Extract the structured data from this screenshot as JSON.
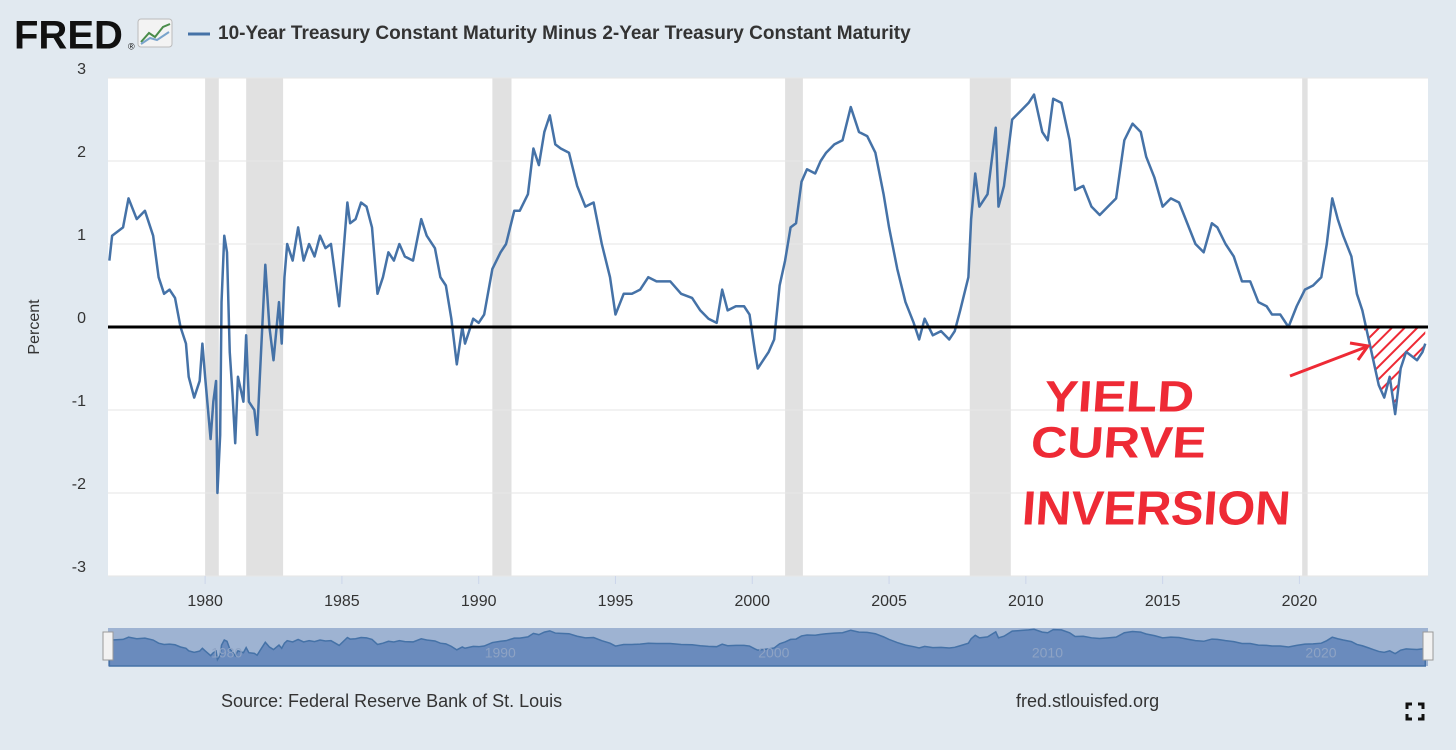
{
  "header": {
    "logo": "FRED",
    "logo_mark": "®"
  },
  "chart_data": {
    "type": "line",
    "y_label": "Percent",
    "series": [
      {
        "name": "10-Year Treasury Constant Maturity Minus 2-Year Treasury Constant Maturity",
        "color": "#4572a7",
        "values": [
          0.8,
          1.1,
          1.2,
          1.55,
          1.3,
          1.4,
          1.1,
          0.6,
          0.4,
          0.45,
          0.35,
          0.0,
          -0.2,
          -0.6,
          -0.85,
          -0.65,
          -0.2,
          -0.6,
          -1.35,
          -0.9,
          -0.65,
          -2.0,
          -1.3,
          0.3,
          1.1,
          0.9,
          -0.3,
          -0.8,
          -1.4,
          -0.6,
          -0.9,
          -0.1,
          -0.9,
          -1.0,
          -1.3,
          -0.6,
          0.75,
          0.0,
          -0.4,
          0.3,
          -0.2,
          0.6,
          1.0,
          0.8,
          1.2,
          0.8,
          1.0,
          0.85,
          1.1,
          0.95,
          1.0,
          0.5,
          0.25,
          1.5,
          1.25,
          1.3,
          1.5,
          1.45,
          1.2,
          0.4,
          0.6,
          0.9,
          0.8,
          1.0,
          0.85,
          0.8,
          1.3,
          1.1,
          0.95,
          0.6,
          0.5,
          0.1,
          -0.45,
          0.0,
          -0.2,
          0.1,
          0.05,
          0.15,
          0.7,
          0.9,
          1.0,
          1.4,
          1.4,
          1.6,
          2.15,
          1.95,
          2.35,
          2.55,
          2.2,
          2.15,
          2.1,
          1.7,
          1.45,
          1.5,
          1.0,
          0.6,
          0.15,
          0.4,
          0.4,
          0.45,
          0.6,
          0.55,
          0.55,
          0.55,
          0.4,
          0.35,
          0.2,
          0.1,
          0.05,
          0.45,
          0.2,
          0.25,
          0.25,
          0.15,
          -0.3,
          -0.5,
          -0.4,
          -0.3,
          -0.15,
          0.5,
          0.8,
          1.2,
          1.25,
          1.75,
          1.9,
          1.85,
          2.0,
          2.1,
          2.2,
          2.25,
          2.65,
          2.35,
          2.3,
          2.1,
          1.6,
          1.2,
          0.7,
          0.3,
          0.05,
          -0.15,
          0.1,
          -0.1,
          -0.05,
          -0.15,
          -0.05,
          0.2,
          0.6,
          1.3,
          1.85,
          1.45,
          1.6,
          2.4,
          1.45,
          1.7,
          2.5,
          2.6,
          2.7,
          2.8,
          2.35,
          2.25,
          2.75,
          2.7,
          2.25,
          1.65,
          1.7,
          1.45,
          1.35,
          1.45,
          1.55,
          2.25,
          2.45,
          2.35,
          2.05,
          1.8,
          1.45,
          1.55,
          1.5,
          1.25,
          1.0,
          0.9,
          1.25,
          1.2,
          1.0,
          0.85,
          0.55,
          0.55,
          0.3,
          0.25,
          0.15,
          0.15,
          0.0,
          0.25,
          0.45,
          0.5,
          0.6,
          1.0,
          1.55,
          1.3,
          1.1,
          0.85,
          0.4,
          0.2,
          -0.1,
          -0.4,
          -0.7,
          -0.85,
          -0.6,
          -1.05,
          -0.5,
          -0.3,
          -0.35,
          -0.4,
          -0.3,
          -0.2
        ]
      }
    ],
    "x": [
      1976.5,
      1976.6,
      1977.0,
      1977.2,
      1977.5,
      1977.8,
      1978.1,
      1978.3,
      1978.5,
      1978.7,
      1978.9,
      1979.1,
      1979.3,
      1979.4,
      1979.6,
      1979.8,
      1979.9,
      1980.0,
      1980.2,
      1980.3,
      1980.4,
      1980.45,
      1980.55,
      1980.6,
      1980.7,
      1980.8,
      1980.9,
      1981.0,
      1981.1,
      1981.2,
      1981.4,
      1981.5,
      1981.6,
      1981.8,
      1981.9,
      1982.0,
      1982.2,
      1982.35,
      1982.5,
      1982.7,
      1982.8,
      1982.9,
      1983.0,
      1983.2,
      1983.4,
      1983.6,
      1983.8,
      1984.0,
      1984.2,
      1984.4,
      1984.6,
      1984.8,
      1984.9,
      1985.2,
      1985.3,
      1985.5,
      1985.7,
      1985.9,
      1986.1,
      1986.3,
      1986.5,
      1986.7,
      1986.9,
      1987.1,
      1987.3,
      1987.6,
      1987.9,
      1988.1,
      1988.4,
      1988.6,
      1988.8,
      1989.0,
      1989.2,
      1989.4,
      1989.5,
      1989.8,
      1990.0,
      1990.2,
      1990.5,
      1990.8,
      1991.0,
      1991.3,
      1991.5,
      1991.8,
      1992.0,
      1992.2,
      1992.4,
      1992.6,
      1992.8,
      1993.0,
      1993.3,
      1993.6,
      1993.9,
      1994.2,
      1994.5,
      1994.8,
      1995.0,
      1995.3,
      1995.6,
      1995.9,
      1996.2,
      1996.5,
      1996.8,
      1997.0,
      1997.4,
      1997.8,
      1998.1,
      1998.4,
      1998.7,
      1998.9,
      1999.1,
      1999.4,
      1999.7,
      1999.9,
      2000.1,
      2000.2,
      2000.4,
      2000.6,
      2000.8,
      2001.0,
      2001.2,
      2001.4,
      2001.6,
      2001.8,
      2002.0,
      2002.3,
      2002.5,
      2002.7,
      2003.0,
      2003.3,
      2003.6,
      2003.9,
      2004.2,
      2004.5,
      2004.8,
      2005.0,
      2005.3,
      2005.6,
      2005.9,
      2006.1,
      2006.3,
      2006.6,
      2006.9,
      2007.2,
      2007.4,
      2007.6,
      2007.9,
      2008.0,
      2008.15,
      2008.3,
      2008.6,
      2008.9,
      2009.0,
      2009.2,
      2009.5,
      2009.8,
      2010.1,
      2010.3,
      2010.6,
      2010.8,
      2011.0,
      2011.3,
      2011.6,
      2011.8,
      2012.1,
      2012.4,
      2012.7,
      2013.0,
      2013.3,
      2013.6,
      2013.9,
      2014.2,
      2014.4,
      2014.7,
      2015.0,
      2015.3,
      2015.6,
      2015.9,
      2016.2,
      2016.5,
      2016.8,
      2017.0,
      2017.3,
      2017.6,
      2017.9,
      2018.2,
      2018.5,
      2018.8,
      2019.0,
      2019.3,
      2019.6,
      2019.9,
      2020.2,
      2020.5,
      2020.8,
      2021.0,
      2021.2,
      2021.4,
      2021.6,
      2021.9,
      2022.1,
      2022.3,
      2022.5,
      2022.7,
      2022.9,
      2023.1,
      2023.3,
      2023.5,
      2023.7,
      2023.9,
      2024.1,
      2024.3,
      2024.5,
      2024.6
    ],
    "xlim": [
      1976.45,
      2024.7
    ],
    "ylim": [
      -3,
      3
    ],
    "xticks": [
      1980,
      1985,
      1990,
      1995,
      2000,
      2005,
      2010,
      2015,
      2020
    ],
    "yticks": [
      -3,
      -2,
      -1,
      0,
      1,
      2,
      3
    ],
    "grid": true,
    "recessions": [
      [
        1980.0,
        1980.5
      ],
      [
        1981.5,
        1982.85
      ],
      [
        1990.5,
        1991.2
      ],
      [
        2001.2,
        2001.85
      ],
      [
        2007.95,
        2009.45
      ],
      [
        2020.1,
        2020.3
      ]
    ],
    "recession_color": "#e1e1e1",
    "reference_line": 0,
    "annotation": {
      "lines": [
        "YIELD",
        "CURVE",
        "INVERSION"
      ],
      "color": "#ee2a35"
    }
  },
  "footer": {
    "source": "Source: Federal Reserve Bank of St. Louis",
    "url": "fred.stlouisfed.org"
  }
}
